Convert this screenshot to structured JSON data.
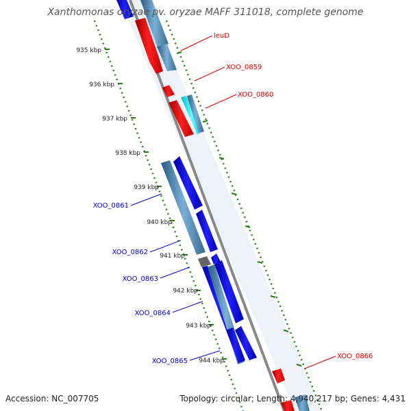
{
  "title": "Xanthomonas oryzae pv. oryzae MAFF 311018, complete genome",
  "footer": {
    "accession": "Accession: NC_007705",
    "summary": "Topology: circular; Length: 4,940,217 bp; Genes: 4,431"
  },
  "ticks": [
    "935 kbp",
    "936 kbp",
    "937 kbp",
    "938 kbp",
    "939 kbp",
    "940 kbp",
    "941 kbp",
    "942 kbp",
    "943 kbp",
    "944 kbp"
  ],
  "gene_labels": [
    {
      "name": "leuD",
      "strand": "forward"
    },
    {
      "name": "XOO_0859",
      "strand": "forward"
    },
    {
      "name": "XOO_0860",
      "strand": "forward"
    },
    {
      "name": "XOO_0861",
      "strand": "reverse"
    },
    {
      "name": "XOO_0862",
      "strand": "reverse"
    },
    {
      "name": "XOO_0863",
      "strand": "reverse"
    },
    {
      "name": "XOO_0864",
      "strand": "reverse"
    },
    {
      "name": "XOO_0865",
      "strand": "reverse"
    },
    {
      "name": "XOO_0866",
      "strand": "forward"
    }
  ],
  "colors": {
    "forward_gene": "#ff0000",
    "reverse_gene": "#0000ee",
    "forward_label": "#dd0000",
    "reverse_label": "#0000cc",
    "tick": "#2a7a1a",
    "backbone": "#888888"
  }
}
